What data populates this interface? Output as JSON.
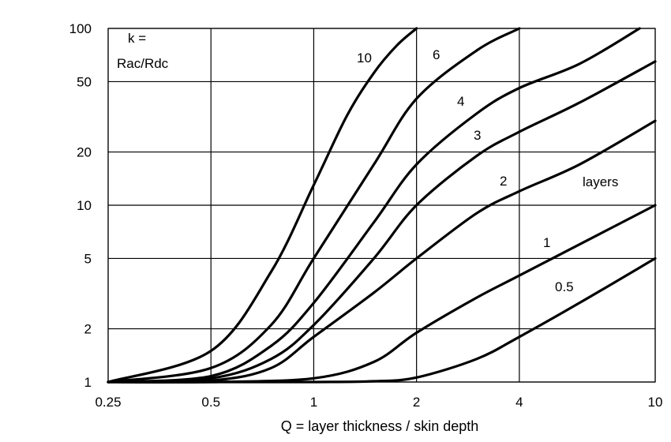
{
  "chart_data": {
    "type": "line",
    "title": "",
    "xlabel": "Q = layer thickness / skin depth",
    "ylabel_lines": [
      "k =",
      "Rac/Rdc"
    ],
    "x_scale": "log",
    "y_scale": "log",
    "xlim": [
      0.25,
      10
    ],
    "ylim": [
      1,
      100
    ],
    "x_ticks": [
      0.25,
      0.5,
      1,
      2,
      4,
      10
    ],
    "x_tick_labels": [
      "0.25",
      "0.5",
      "1",
      "2",
      "4",
      "10"
    ],
    "y_ticks": [
      1,
      2,
      5,
      10,
      20,
      50,
      100
    ],
    "y_tick_labels": [
      "1",
      "2",
      "5",
      "10",
      "20",
      "50",
      "100"
    ],
    "grid": true,
    "legend_title": "layers",
    "series": [
      {
        "name": "0.5",
        "x": [
          0.25,
          0.5,
          1,
          1.5,
          2,
          3,
          4,
          6,
          10
        ],
        "y": [
          1,
          1,
          1,
          1.01,
          1.06,
          1.35,
          1.8,
          2.8,
          5
        ]
      },
      {
        "name": "1",
        "x": [
          0.25,
          0.5,
          1,
          1.5,
          2,
          3,
          4,
          6,
          10
        ],
        "y": [
          1,
          1,
          1.05,
          1.3,
          1.9,
          3,
          4,
          6,
          10
        ]
      },
      {
        "name": "2",
        "x": [
          0.25,
          0.5,
          0.75,
          1,
          1.5,
          2,
          3,
          4,
          6,
          10
        ],
        "y": [
          1,
          1.02,
          1.2,
          1.8,
          3.2,
          5,
          9,
          12,
          17,
          30
        ]
      },
      {
        "name": "3",
        "x": [
          0.25,
          0.5,
          0.75,
          1,
          1.5,
          2,
          3,
          4,
          6,
          10
        ],
        "y": [
          1,
          1.05,
          1.35,
          2.1,
          5,
          10,
          19,
          26,
          38,
          65
        ]
      },
      {
        "name": "4",
        "x": [
          0.25,
          0.5,
          0.75,
          1,
          1.5,
          2,
          3,
          4,
          6,
          9
        ],
        "y": [
          1,
          1.08,
          1.6,
          2.8,
          8,
          17,
          33,
          46,
          63,
          100
        ]
      },
      {
        "name": "6",
        "x": [
          0.25,
          0.5,
          0.75,
          1,
          1.5,
          2,
          3,
          4
        ],
        "y": [
          1,
          1.2,
          2.1,
          5,
          17,
          40,
          75,
          100
        ]
      },
      {
        "name": "10",
        "x": [
          0.25,
          0.5,
          0.75,
          1,
          1.25,
          1.5,
          1.75,
          2
        ],
        "y": [
          1,
          1.5,
          4.2,
          13,
          32,
          56,
          80,
          100
        ]
      }
    ],
    "series_label_text": [
      "0.5",
      "1",
      "2",
      "3",
      "4",
      "6",
      "10"
    ]
  }
}
